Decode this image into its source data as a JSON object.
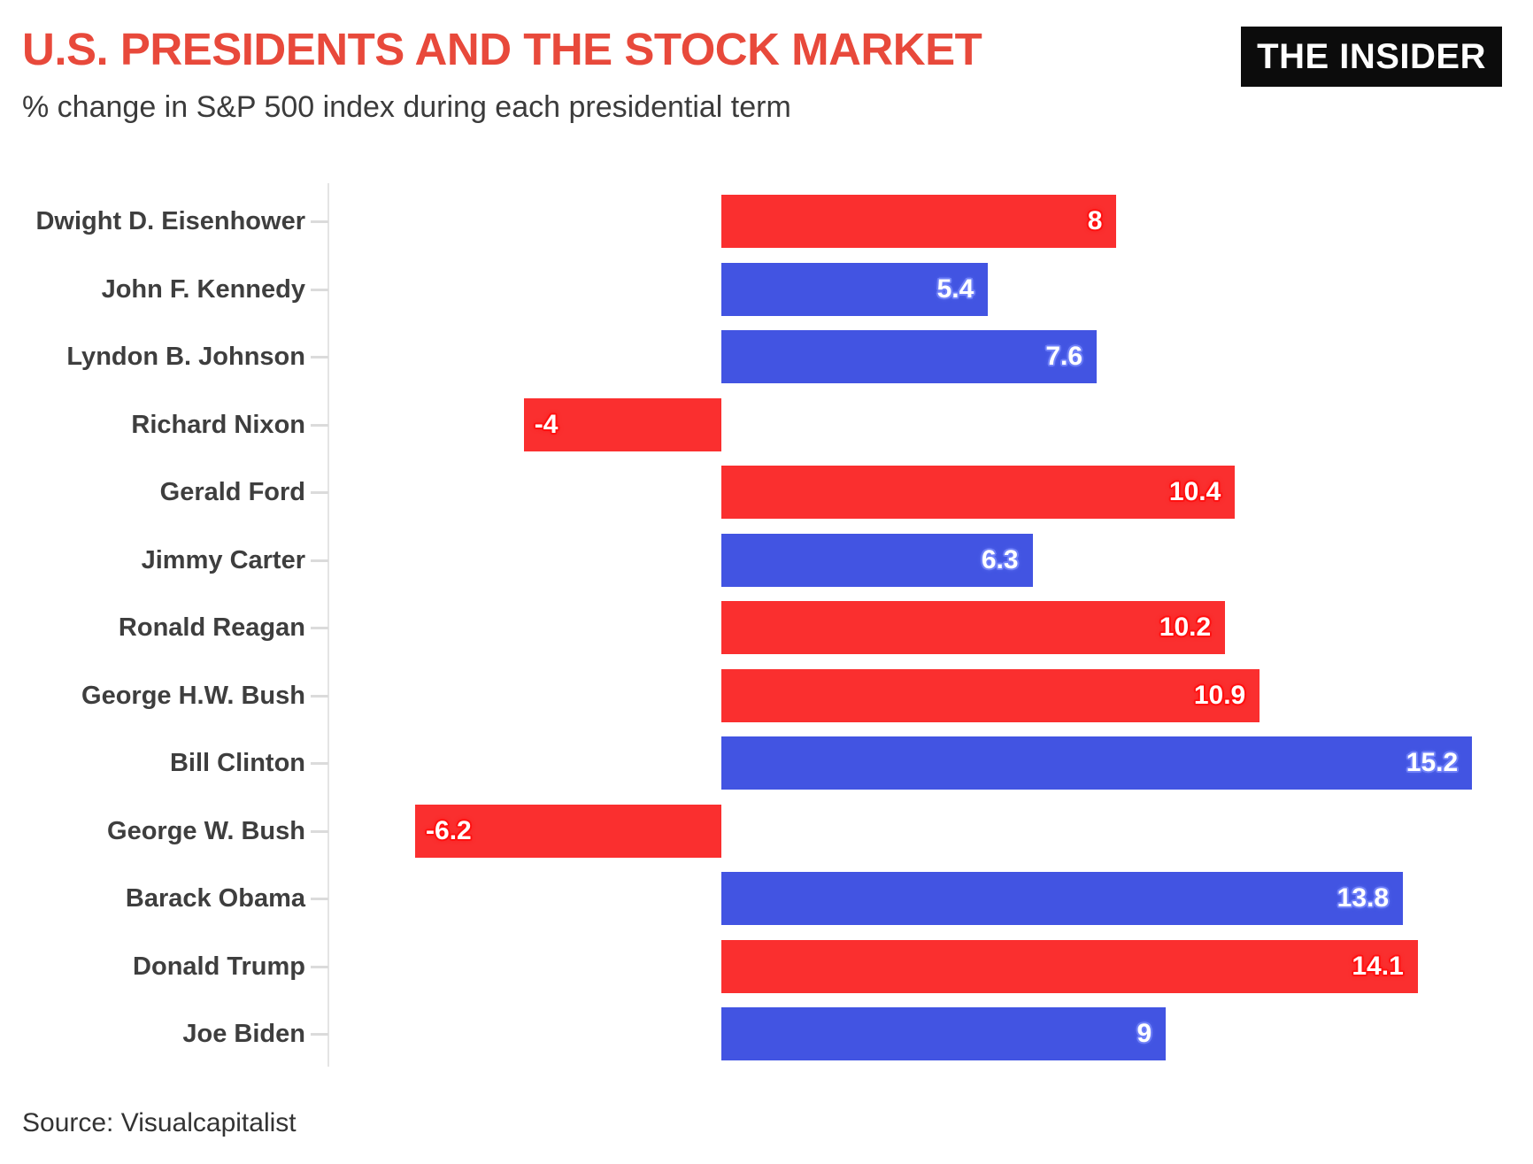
{
  "header": {
    "title": "U.S. PRESIDENTS AND THE STOCK MARKET",
    "logo_text": "THE INSIDER"
  },
  "subtitle": "% change in S&P 500 index during each presidential term",
  "footer": {
    "source": "Source: Visualcapitalist"
  },
  "colors": {
    "title_red": "#e8493b",
    "republican_bar": "#fa2f2f",
    "democrat_bar": "#4254e2",
    "republican_halo": "#ff1010",
    "democrat_halo": "#6f80f8",
    "axis_gray": "#e4e4e4"
  },
  "chart_data": {
    "type": "bar",
    "orientation": "horizontal",
    "title": "U.S. PRESIDENTS AND THE STOCK MARKET",
    "subtitle": "% change in S&P 500 index during each presidential term",
    "xlabel": "",
    "ylabel": "",
    "xlim": [
      -8,
      16.4
    ],
    "grid": false,
    "legend": false,
    "value_labels": "inside-end",
    "categories": [
      "Dwight D. Eisenhower",
      "John F. Kennedy",
      "Lyndon B. Johnson",
      "Richard Nixon",
      "Gerald Ford",
      "Jimmy Carter",
      "Ronald Reagan",
      "George H.W. Bush",
      "Bill Clinton",
      "George W. Bush",
      "Barack Obama",
      "Donald Trump",
      "Joe Biden"
    ],
    "values": [
      8,
      5.4,
      7.6,
      -4,
      10.4,
      6.3,
      10.2,
      10.9,
      15.2,
      -6.2,
      13.8,
      14.1,
      9
    ],
    "bars": [
      {
        "name": "Dwight D. Eisenhower",
        "value": 8,
        "display": "8",
        "party": "R"
      },
      {
        "name": "John F. Kennedy",
        "value": 5.4,
        "display": "5.4",
        "party": "D"
      },
      {
        "name": "Lyndon B. Johnson",
        "value": 7.6,
        "display": "7.6",
        "party": "D"
      },
      {
        "name": "Richard Nixon",
        "value": -4,
        "display": "-4",
        "party": "R"
      },
      {
        "name": "Gerald Ford",
        "value": 10.4,
        "display": "10.4",
        "party": "R"
      },
      {
        "name": "Jimmy Carter",
        "value": 6.3,
        "display": "6.3",
        "party": "D"
      },
      {
        "name": "Ronald Reagan",
        "value": 10.2,
        "display": "10.2",
        "party": "R"
      },
      {
        "name": "George H.W. Bush",
        "value": 10.9,
        "display": "10.9",
        "party": "R"
      },
      {
        "name": "Bill Clinton",
        "value": 15.2,
        "display": "15.2",
        "party": "D"
      },
      {
        "name": "George W. Bush",
        "value": -6.2,
        "display": "-6.2",
        "party": "R"
      },
      {
        "name": "Barack Obama",
        "value": 13.8,
        "display": "13.8",
        "party": "D"
      },
      {
        "name": "Donald Trump",
        "value": 14.1,
        "display": "14.1",
        "party": "R"
      },
      {
        "name": "Joe Biden",
        "value": 9,
        "display": "9",
        "party": "D"
      }
    ]
  }
}
